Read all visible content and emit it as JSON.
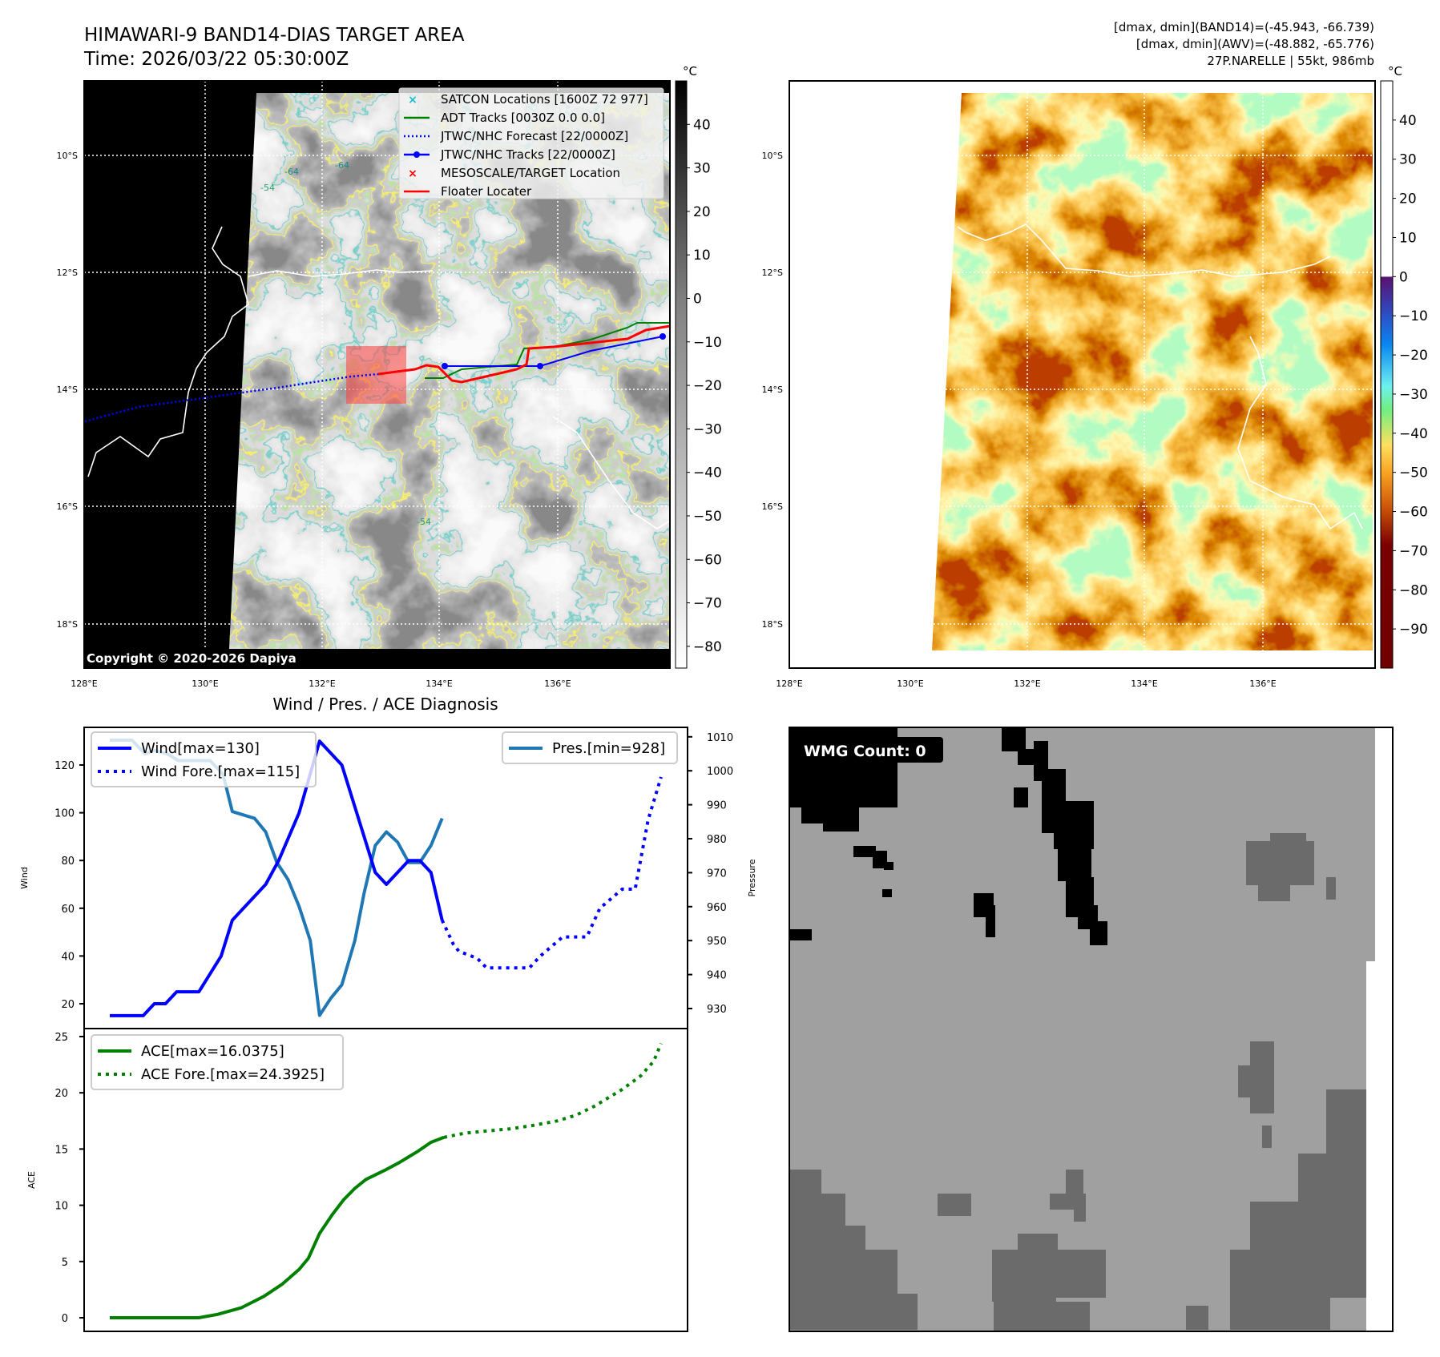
{
  "header": {
    "title": "HIMAWARI-9 BAND14-DIAS TARGET AREA",
    "time": "Time: 2026/03/22 05:30:00Z",
    "stats_band14": "[dmax, dmin](BAND14)=(-45.943, -66.739)",
    "stats_awv": "[dmax, dmin](AWV)=(-48.882, -65.776)",
    "storm": "27P.NARELLE | 55kt, 986mb"
  },
  "maps": {
    "lat_labels": [
      "10°S",
      "12°S",
      "14°S",
      "16°S",
      "18°S"
    ],
    "lon_labels": [
      "128°E",
      "130°E",
      "132°E",
      "134°E",
      "136°E"
    ],
    "copyright": "Copyright © 2020-2026 Dapiya",
    "legend": [
      {
        "label": "SATCON Locations [1600Z 72 977]",
        "color": "#17becf",
        "style": "x"
      },
      {
        "label": "ADT Tracks [0030Z 0.0 0.0]",
        "color": "#008000",
        "style": "line"
      },
      {
        "label": "JTWC/NHC Forecast [22/0000Z]",
        "color": "#0000ff",
        "style": "dotted"
      },
      {
        "label": "JTWC/NHC Tracks [22/0000Z]",
        "color": "#0000ff",
        "style": "marker"
      },
      {
        "label": "MESOSCALE/TARGET Location",
        "color": "#ff0000",
        "style": "x"
      },
      {
        "label": "Floater Locater",
        "color": "#ff0000",
        "style": "line"
      }
    ],
    "left_colorbar": {
      "unit": "°C",
      "ticks": [
        "40",
        "30",
        "20",
        "10",
        "0",
        "−10",
        "−20",
        "−30",
        "−40",
        "−50",
        "−60",
        "−70",
        "−80"
      ],
      "values": [
        40,
        30,
        20,
        10,
        0,
        -10,
        -20,
        -30,
        -40,
        -50,
        -60,
        -70,
        -80
      ],
      "range": [
        -85,
        50
      ]
    },
    "right_colorbar": {
      "unit": "°C",
      "ticks": [
        "40",
        "30",
        "20",
        "10",
        "0",
        "−10",
        "−20",
        "−30",
        "−40",
        "−50",
        "−60",
        "−70",
        "−80",
        "−90"
      ],
      "values": [
        40,
        30,
        20,
        10,
        0,
        -10,
        -20,
        -30,
        -40,
        -50,
        -60,
        -70,
        -80,
        -90
      ],
      "range": [
        -100,
        50
      ]
    },
    "contour_labels": [
      "-64",
      "-64",
      "-54",
      "-54",
      "-64",
      "-54"
    ]
  },
  "wmg": {
    "label": "WMG Count: 0"
  },
  "chart_data": [
    {
      "type": "line",
      "title": "Wind / Pres. / ACE Diagnosis",
      "ylabel": "Wind",
      "y2label": "Pressure",
      "ylim": [
        12,
        135
      ],
      "y2lim": [
        925,
        1013
      ],
      "yticks": [
        20,
        40,
        60,
        80,
        100,
        120
      ],
      "y2ticks": [
        930,
        940,
        950,
        960,
        970,
        980,
        990,
        1000,
        1010
      ],
      "xlim": [
        -14,
        311
      ],
      "series": [
        {
          "name": "Wind[max=130]",
          "color": "#0000ff",
          "style": "solid",
          "x": [
            0,
            18,
            24,
            30,
            36,
            48,
            60,
            66,
            84,
            91,
            102,
            113,
            125,
            143,
            149,
            161,
            167,
            173,
            179
          ],
          "values": [
            15,
            15,
            20,
            20,
            25,
            25,
            40,
            55,
            70,
            80,
            100,
            130,
            120,
            75,
            70,
            80,
            80,
            75,
            55
          ]
        },
        {
          "name": "Wind Fore.[max=115]",
          "color": "#0000ff",
          "style": "dotted",
          "x": [
            179,
            185,
            188,
            198,
            203,
            216,
            226,
            232,
            244,
            251,
            257,
            264,
            276,
            283,
            290,
            297
          ],
          "values": [
            55,
            45,
            42,
            39,
            35,
            35,
            35,
            40,
            48,
            48,
            48,
            60,
            68,
            68,
            97,
            115
          ]
        },
        {
          "name": "Pres.[min=928]",
          "color": "#1f77b4",
          "style": "solid",
          "axis": "right",
          "x": [
            0,
            12,
            19,
            24,
            31,
            37,
            54,
            61,
            66,
            78,
            84,
            90,
            96,
            102,
            108,
            113,
            119,
            125,
            132,
            137,
            143,
            149,
            155,
            161,
            167,
            173,
            179
          ],
          "values": [
            1009,
            1009,
            1005,
            1006,
            1005,
            1003,
            1003,
            999,
            988,
            986,
            982,
            973,
            968,
            960,
            950,
            928,
            933,
            937,
            950,
            964,
            978,
            982,
            979,
            973,
            973,
            978,
            986
          ]
        }
      ],
      "legend": {
        "left": "top-left",
        "right": "top-right"
      }
    },
    {
      "type": "line",
      "ylabel": "ACE",
      "ylim": [
        -1.3,
        25.2
      ],
      "yticks": [
        0,
        5,
        10,
        15,
        20,
        25
      ],
      "xlim": [
        -14,
        311
      ],
      "series": [
        {
          "name": "ACE[max=16.0375]",
          "color": "#008000",
          "style": "solid",
          "x": [
            0,
            48,
            58,
            71,
            83,
            93,
            102,
            107,
            113,
            120,
            126,
            132,
            138,
            148,
            156,
            166,
            173,
            180
          ],
          "values": [
            0,
            0,
            0.3,
            0.9,
            1.9,
            3,
            4.3,
            5.3,
            7.5,
            9.2,
            10.5,
            11.5,
            12.3,
            13.1,
            13.8,
            14.8,
            15.6,
            16.04
          ]
        },
        {
          "name": "ACE Fore.[max=24.3925]",
          "color": "#008000",
          "style": "dotted",
          "x": [
            180,
            191,
            203,
            216,
            228,
            241,
            251,
            261,
            268,
            276,
            286,
            293,
            297
          ],
          "values": [
            16.04,
            16.4,
            16.6,
            16.8,
            17.1,
            17.5,
            18,
            18.8,
            19.5,
            20.3,
            21.5,
            22.8,
            24.39
          ]
        }
      ],
      "legend": {
        "left": "top-left"
      }
    }
  ]
}
